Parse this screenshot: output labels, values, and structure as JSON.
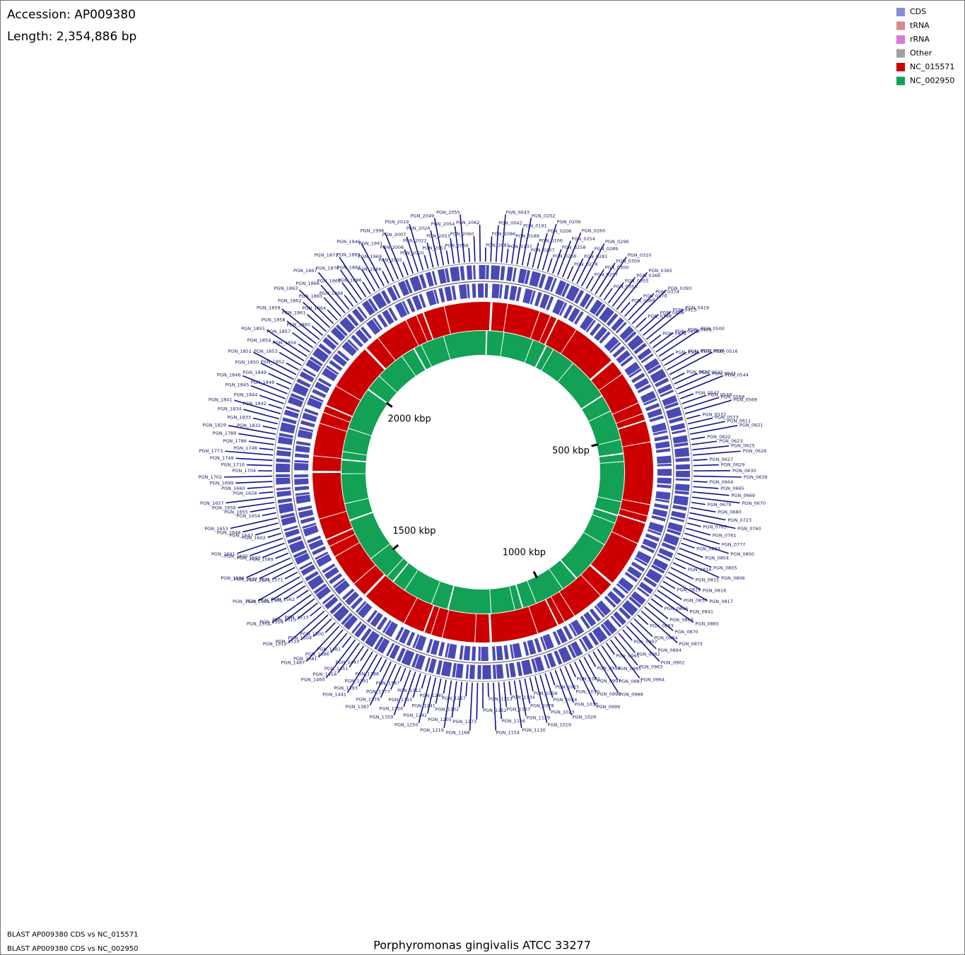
{
  "header": {
    "accession": "Accession: AP009380",
    "length": {
      "value": 2354886,
      "label": "Length: 2,354,886 bp"
    }
  },
  "legend": [
    {
      "label": "CDS",
      "color": "#8a8ad6"
    },
    {
      "label": "tRNA",
      "color": "#d68a8a"
    },
    {
      "label": "rRNA",
      "color": "#d67ad6"
    },
    {
      "label": "Other",
      "color": "#a0a0a0"
    },
    {
      "label": "NC_015571",
      "color": "#cc0000"
    },
    {
      "label": "NC_002950",
      "color": "#12a155"
    }
  ],
  "ruler": [
    {
      "value": 500000,
      "label": "500 kbp"
    },
    {
      "value": 1000000,
      "label": "1000 kbp"
    },
    {
      "value": 1500000,
      "label": "1500 kbp"
    },
    {
      "value": 2000000,
      "label": "2000 kbp"
    }
  ],
  "gene_labels": [
    "PGN_2081",
    "PGN_2086",
    "PGN_0042",
    "PGN_0043",
    "PGN_0137",
    "PGN_0189",
    "PGN_0191",
    "PGN_0202",
    "PGN_0207",
    "PGN_0206",
    "PGN_0208",
    "PGN_0209",
    "PGN_0266",
    "PGN_0258",
    "PGN_0254",
    "PGN_0260",
    "PGN_0278",
    "PGN_0281",
    "PGN_0289",
    "PGN_0296",
    "PGN_0297",
    "PGN_0300",
    "PGN_0309",
    "PGN_0310",
    "PGN_0353",
    "PGN_0355",
    "PGN_0366",
    "PGN_0365",
    "PGN_0369",
    "PGN_0370",
    "PGN_0374",
    "PGN_0393",
    "PGN_0398",
    "PGN_0408",
    "PGN_0413",
    "PGN_0419",
    "PGN_0472",
    "PGN_0473",
    "PGN_0499",
    "PGN_0500",
    "PGN_0501",
    "PGN_0502",
    "PGN_0515",
    "PGN_0516",
    "PGN_0517",
    "PGN_0523",
    "PGN_0543",
    "PGN_0544",
    "PGN_0547",
    "PGN_0548",
    "PGN_0568",
    "PGN_0569",
    "PGN_0572",
    "PGN_0573",
    "PGN_0611",
    "PGN_0621",
    "PGN_0622",
    "PGN_0623",
    "PGN_0625",
    "PGN_0626",
    "PGN_0627",
    "PGN_0629",
    "PGN_0630",
    "PGN_0639",
    "PGN_0664",
    "PGN_0665",
    "PGN_0669",
    "PGN_0670",
    "PGN_0679",
    "PGN_0680",
    "PGN_0723",
    "PGN_0760",
    "PGN_0765",
    "PGN_0761",
    "PGN_0777",
    "PGN_0800",
    "PGN_0803",
    "PGN_0804",
    "PGN_0805",
    "PGN_0806",
    "PGN_0814",
    "PGN_0815",
    "PGN_0816",
    "PGN_0817",
    "PGN_0819",
    "PGN_0830",
    "PGN_0841",
    "PGN_0865",
    "PGN_0866",
    "PGN_0868",
    "PGN_0870",
    "PGN_0875",
    "PGN_0883",
    "PGN_0884",
    "PGN_0894",
    "PGN_0902",
    "PGN_0907",
    "PGN_0962",
    "PGN_0963",
    "PGN_0964",
    "PGN_0965",
    "PGN_0985",
    "PGN_0987",
    "PGN_0988",
    "PGN_0994",
    "PGN_0997",
    "PGN_0998",
    "PGN_0999",
    "PGN_1001",
    "PGN_1010",
    "PGN_1033",
    "PGN_1026",
    "PGN_1025",
    "PGN_1024",
    "PGN_1023",
    "PGN_1019",
    "PGN_1058",
    "PGN_1078",
    "PGN_1129",
    "PGN_1130",
    "PGN_1134",
    "PGN_1157",
    "PGN_1156",
    "PGN_1154",
    "PGN_1153",
    "PGN_1152",
    "PGN_1173",
    "PGN_1168",
    "PGN_1167",
    "PGN_1202",
    "PGN_1205",
    "PGN_1219",
    "PGN_1240",
    "PGN_1241",
    "PGN_1242",
    "PGN_1250",
    "PGN_1312",
    "PGN_1315",
    "PGN_1356",
    "PGN_1359",
    "PGN_1367",
    "PGN_1377",
    "PGN_1378",
    "PGN_1387",
    "PGN_1388",
    "PGN_1391",
    "PGN_1393",
    "PGN_1441",
    "PGN_1447",
    "PGN_1451",
    "PGN_1458",
    "PGN_1460",
    "PGN_1461",
    "PGN_1486",
    "PGN_1481",
    "PGN_1487",
    "PGN_1500",
    "PGN_1504",
    "PGN_1510",
    "PGN_1512",
    "PGN_1513",
    "PGN_1515",
    "PGN_1516",
    "PGN_1552",
    "PGN_1562",
    "PGN_1565",
    "PGN_1569",
    "PGN_1570",
    "PGN_1571",
    "PGN_1575",
    "PGN_1577",
    "PGN_1586",
    "PGN_1589",
    "PGN_1593",
    "PGN_1600",
    "PGN_1601",
    "PGN_1602",
    "PGN_1647",
    "PGN_1648",
    "PGN_1653",
    "PGN_1654",
    "PGN_1655",
    "PGN_1656",
    "PGN_1657",
    "PGN_1658",
    "PGN_1660",
    "PGN_1699",
    "PGN_1702",
    "PGN_1704",
    "PGN_1716",
    "PGN_1749",
    "PGN_1773",
    "PGN_1748",
    "PGN_1786",
    "PGN_1789",
    "PGN_1829",
    "PGN_1832",
    "PGN_1833",
    "PGN_1834",
    "PGN_1841",
    "PGN_1842",
    "PGN_1844",
    "PGN_1845",
    "PGN_1846",
    "PGN_1848",
    "PGN_1849",
    "PGN_1850",
    "PGN_1851",
    "PGN_1852",
    "PGN_1853",
    "PGN_1854",
    "PGN_1855",
    "PGN_1856",
    "PGN_1857",
    "PGN_1858",
    "PGN_1859",
    "PGN_1860",
    "PGN_1861",
    "PGN_1862",
    "PGN_1863",
    "PGN_1864",
    "PGN_1865",
    "PGN_1866",
    "PGN_1867",
    "PGN_1868",
    "PGN_1869",
    "PGN_1870",
    "PGN_1871",
    "PGN_1886",
    "PGN_1887",
    "PGN_1889",
    "PGN_1946",
    "PGN_1966",
    "PGN_1969",
    "PGN_1991",
    "PGN_1996",
    "PGN_2005",
    "PGN_2006",
    "PGN_2007",
    "PGN_2019",
    "PGN_2020",
    "PGN_2022",
    "PGN_2024",
    "PGN_2049",
    "PGN_2051",
    "PGN_2053",
    "PGN_2054",
    "PGN_2055",
    "PGN_2056",
    "PGN_2060",
    "PGN_2062"
  ],
  "footer": {
    "blast": [
      "BLAST AP009380 CDS vs NC_015571",
      "BLAST AP009380 CDS vs NC_002950"
    ],
    "title": "Porphyromonas gingivalis ATCC 33277"
  }
}
